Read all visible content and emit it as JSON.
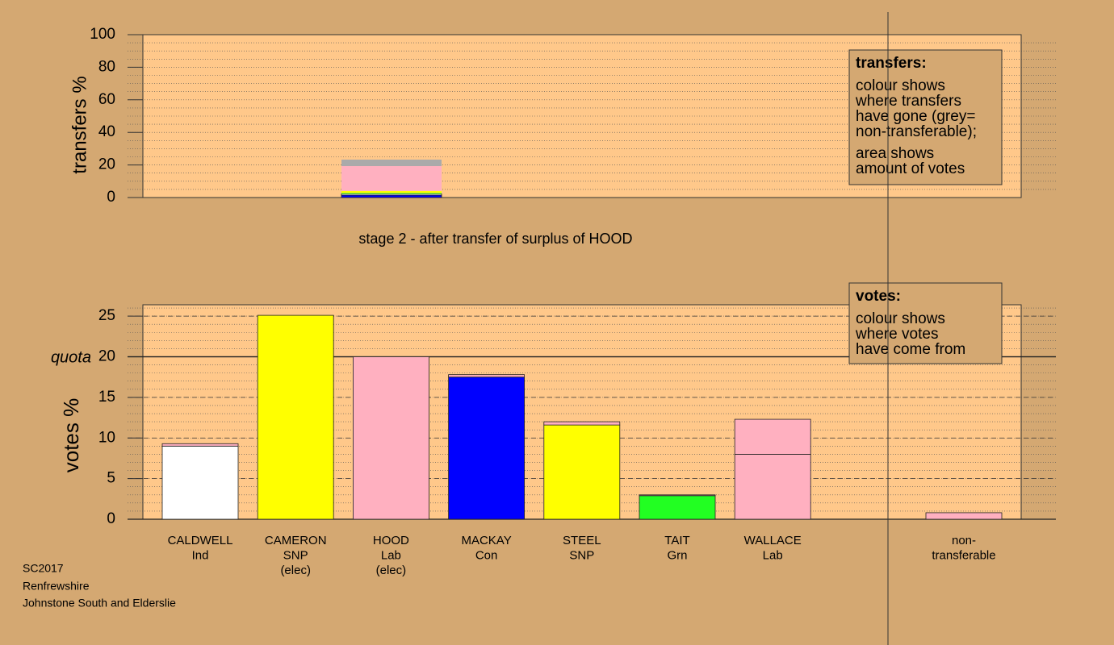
{
  "chart_data": [
    {
      "type": "stacked_bar",
      "ylabel": "transfers %",
      "xlabel": "stage 2 - after transfer of surplus of HOOD",
      "ylim": [
        0,
        100
      ],
      "yticks": [
        0,
        20,
        40,
        60,
        80,
        100
      ],
      "minor_grid_step": 5,
      "series": [
        {
          "color": "#0000ff",
          "values": [
            1.5
          ]
        },
        {
          "color": "#ffffff",
          "values": [
            0.8
          ]
        },
        {
          "color": "#22ff22",
          "values": [
            0.5
          ]
        },
        {
          "color": "#ffff00",
          "values": [
            1.2
          ]
        },
        {
          "color": "#ffb0c0",
          "values": [
            15.3
          ]
        },
        {
          "color": "#aaaaaa",
          "values": [
            4.0
          ]
        }
      ],
      "note": {
        "title": "transfers:",
        "paragraphs": [
          [
            "colour shows",
            "where transfers",
            "have gone (grey=",
            "non-transferable);"
          ],
          [
            "area shows",
            "amount of votes"
          ]
        ]
      }
    },
    {
      "type": "stacked_bar",
      "ylabel": "votes %",
      "categories": [
        [
          "CALDWELL",
          "Ind"
        ],
        [
          "CAMERON",
          "SNP",
          "(elec)"
        ],
        [
          "HOOD",
          "Lab",
          "(elec)"
        ],
        [
          "MACKAY",
          "Con"
        ],
        [
          "STEEL",
          "SNP"
        ],
        [
          "TAIT",
          "Grn"
        ],
        [
          "WALLACE",
          "Lab"
        ],
        [
          "non-",
          "transferable"
        ]
      ],
      "ylim": [
        0,
        26.4
      ],
      "yticks": [
        0,
        5,
        10,
        15,
        20,
        25
      ],
      "minor_grid_step": 1,
      "quota": {
        "label": "quota",
        "value": 20
      },
      "series": [
        {
          "colors": [
            "#ffffff",
            "#ffff00",
            "#ffb0c0",
            "#0000ff",
            "#ffff00",
            "#22ff22",
            "#ffb0c0",
            "#ffb0c0"
          ],
          "values": [
            9.0,
            25.1,
            20.0,
            17.5,
            11.6,
            2.9,
            8.0,
            0.8
          ]
        },
        {
          "colors": [
            "#ffb0c0",
            "#ffb0c0",
            "#ffb0c0",
            "#ffb0c0",
            "#ffb0c0",
            "#ffb0c0",
            "#ffb0c0",
            "#ffb0c0"
          ],
          "values": [
            0.3,
            0,
            0,
            0.3,
            0.4,
            0.1,
            4.3,
            null
          ]
        }
      ],
      "note": {
        "title": "votes:",
        "paragraphs": [
          [
            "colour shows",
            "where votes",
            "have come from"
          ]
        ]
      }
    }
  ],
  "footer": [
    "SC2017",
    "Renfrewshire",
    "Johnstone South and Elderslie"
  ]
}
